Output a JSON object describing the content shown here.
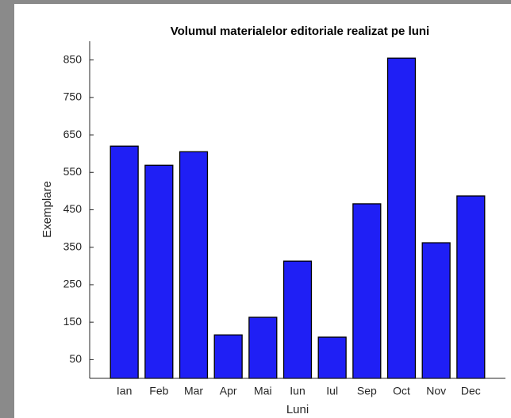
{
  "chart_data": {
    "type": "bar",
    "title": "Volumul materialelor editoriale realizat pe luni",
    "x_label": "Luni",
    "y_label": "Exemplare",
    "categories": [
      "Ian",
      "Feb",
      "Mar",
      "Apr",
      "Mai",
      "Iun",
      "Iul",
      "Sep",
      "Oct",
      "Nov",
      "Dec"
    ],
    "values": [
      620,
      569,
      605,
      116,
      163,
      313,
      110,
      466,
      855,
      362,
      487
    ],
    "color": "#1f1ff5",
    "ylim": [
      0,
      900
    ],
    "yticks": [
      50,
      150,
      250,
      350,
      450,
      550,
      650,
      750,
      850
    ],
    "grid": false
  }
}
